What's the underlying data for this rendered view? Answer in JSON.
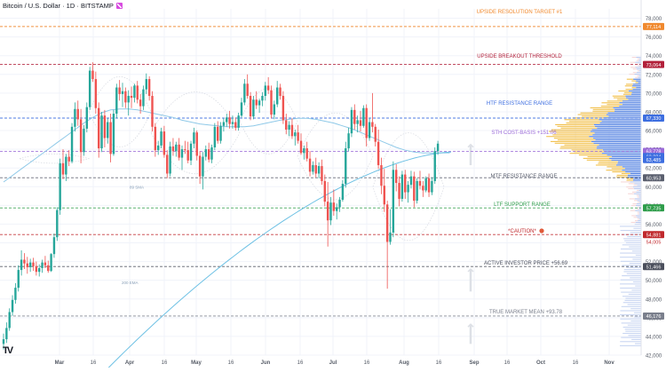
{
  "header": {
    "title": "Bitcoin / U.S. Dollar · 1D · BITSTAMP",
    "brand_icon": "bolt-icon",
    "brand_color": "#d84ce0"
  },
  "watermark": "TV",
  "chart_data": {
    "type": "candlestick",
    "symbol": "Bitcoin / U.S. Dollar",
    "interval": "1D",
    "exchange": "BITSTAMP",
    "ylim": [
      42000,
      79000
    ],
    "y_ticks": [
      "42,000",
      "44,000",
      "46,000",
      "48,000",
      "50,000",
      "52,000",
      "54,000",
      "56,000",
      "58,000",
      "60,000",
      "62,000",
      "64,000",
      "66,000",
      "68,000",
      "70,000",
      "72,000",
      "74,000",
      "76,000",
      "78,000"
    ],
    "x_ticks": [
      "Mar",
      "16",
      "Apr",
      "16",
      "May",
      "16",
      "Jun",
      "16",
      "Jul",
      "16",
      "Aug",
      "16",
      "Sep",
      "16",
      "Oct",
      "16",
      "Nov"
    ],
    "colors": {
      "up": "#26a69a",
      "down": "#ef5350",
      "grid": "#f0f3fa",
      "ma": "#8fc9e8"
    },
    "candles_ohlc": [
      [
        43200,
        44300,
        42600,
        43700
      ],
      [
        43700,
        45500,
        43300,
        44900
      ],
      [
        44900,
        47000,
        44600,
        46600
      ],
      [
        46600,
        48400,
        46200,
        47900
      ],
      [
        47900,
        49700,
        47500,
        49200
      ],
      [
        49200,
        51600,
        48800,
        51100
      ],
      [
        51100,
        53200,
        50500,
        52200
      ],
      [
        52200,
        52900,
        51200,
        51800
      ],
      [
        51800,
        52500,
        50700,
        51400
      ],
      [
        51400,
        52300,
        50900,
        51900
      ],
      [
        51900,
        52400,
        51000,
        51500
      ],
      [
        51500,
        52000,
        50500,
        50900
      ],
      [
        50900,
        51700,
        50400,
        51300
      ],
      [
        51300,
        52200,
        50800,
        51900
      ],
      [
        51900,
        52600,
        51300,
        51600
      ],
      [
        51600,
        52100,
        50800,
        51000
      ],
      [
        51000,
        52900,
        50900,
        52800
      ],
      [
        52800,
        55000,
        52400,
        54600
      ],
      [
        54600,
        57800,
        54200,
        57500
      ],
      [
        57500,
        63000,
        57000,
        62500
      ],
      [
        62500,
        64000,
        60800,
        61300
      ],
      [
        61300,
        63500,
        60600,
        63200
      ],
      [
        63200,
        63900,
        62200,
        62700
      ],
      [
        62700,
        66800,
        62500,
        66400
      ],
      [
        66400,
        69000,
        65900,
        68300
      ],
      [
        68300,
        69200,
        66500,
        67200
      ],
      [
        67200,
        68300,
        62500,
        63700
      ],
      [
        63700,
        66600,
        63300,
        66200
      ],
      [
        66200,
        69000,
        65800,
        68500
      ],
      [
        68500,
        72800,
        68200,
        72400
      ],
      [
        72400,
        73300,
        71200,
        71500
      ],
      [
        71500,
        72300,
        67800,
        68400
      ],
      [
        68400,
        69000,
        63100,
        64100
      ],
      [
        64100,
        68000,
        63700,
        67600
      ],
      [
        67600,
        68200,
        64200,
        65200
      ],
      [
        65200,
        67300,
        64600,
        66900
      ],
      [
        66900,
        67800,
        62600,
        63500
      ],
      [
        63500,
        68200,
        63300,
        67800
      ],
      [
        67800,
        71000,
        67300,
        70600
      ],
      [
        70600,
        71400,
        69200,
        69900
      ],
      [
        69900,
        71100,
        68500,
        70200
      ],
      [
        70200,
        70600,
        68400,
        69000
      ],
      [
        69000,
        70300,
        67600,
        69700
      ],
      [
        69700,
        70700,
        68400,
        69500
      ],
      [
        69500,
        71000,
        69000,
        70800
      ],
      [
        70800,
        71300,
        68900,
        69300
      ],
      [
        69300,
        69900,
        67800,
        68600
      ],
      [
        68600,
        70800,
        68200,
        70400
      ],
      [
        70400,
        72100,
        69900,
        71500
      ],
      [
        71500,
        71800,
        69200,
        69700
      ],
      [
        69700,
        70200,
        65900,
        66400
      ],
      [
        66400,
        66800,
        63200,
        63900
      ],
      [
        63900,
        64900,
        63400,
        64400
      ],
      [
        64400,
        66300,
        64100,
        65900
      ],
      [
        65900,
        66500,
        63100,
        63400
      ],
      [
        63400,
        63900,
        60900,
        61400
      ],
      [
        61400,
        64800,
        61100,
        64300
      ],
      [
        64300,
        65200,
        63300,
        63800
      ],
      [
        63800,
        64800,
        63200,
        64500
      ],
      [
        64500,
        65200,
        62800,
        63100
      ],
      [
        63100,
        64400,
        61800,
        64000
      ],
      [
        64000,
        64900,
        63500,
        63900
      ],
      [
        63900,
        64800,
        62500,
        62800
      ],
      [
        62800,
        64900,
        62300,
        64600
      ],
      [
        64600,
        66300,
        64100,
        65800
      ],
      [
        65800,
        66000,
        62800,
        63300
      ],
      [
        63300,
        63800,
        60300,
        61100
      ],
      [
        61100,
        63700,
        59700,
        63200
      ],
      [
        63200,
        64400,
        62800,
        64000
      ],
      [
        64000,
        64700,
        62600,
        62900
      ],
      [
        62900,
        64500,
        62500,
        64200
      ],
      [
        64200,
        66800,
        63900,
        66400
      ],
      [
        66400,
        67000,
        64600,
        64900
      ],
      [
        64900,
        66900,
        64600,
        66500
      ],
      [
        66500,
        67300,
        65900,
        66900
      ],
      [
        66900,
        67800,
        66400,
        67400
      ],
      [
        67400,
        68100,
        66200,
        66700
      ],
      [
        66700,
        67600,
        66200,
        66900
      ],
      [
        66900,
        67400,
        66000,
        66300
      ],
      [
        66300,
        67900,
        66000,
        67600
      ],
      [
        67600,
        69500,
        67400,
        69000
      ],
      [
        69000,
        71500,
        68700,
        71000
      ],
      [
        71000,
        72000,
        69400,
        69700
      ],
      [
        69700,
        70100,
        67100,
        67500
      ],
      [
        67500,
        69700,
        67200,
        69300
      ],
      [
        69300,
        70200,
        68300,
        68700
      ],
      [
        68700,
        69400,
        67900,
        69200
      ],
      [
        69200,
        70100,
        68600,
        69700
      ],
      [
        69700,
        71200,
        69200,
        70800
      ],
      [
        70800,
        71700,
        69900,
        70300
      ],
      [
        70300,
        70800,
        67300,
        67700
      ],
      [
        67700,
        69200,
        67200,
        68800
      ],
      [
        68800,
        71300,
        68500,
        70600
      ],
      [
        70600,
        71000,
        69300,
        69700
      ],
      [
        69700,
        70200,
        66700,
        67100
      ],
      [
        67100,
        67800,
        65600,
        66100
      ],
      [
        66100,
        67000,
        65400,
        66600
      ],
      [
        66600,
        67300,
        65100,
        65400
      ],
      [
        65400,
        66100,
        64400,
        65800
      ],
      [
        65800,
        66600,
        64600,
        64900
      ],
      [
        64900,
        65700,
        63400,
        63600
      ],
      [
        63600,
        64400,
        62900,
        64100
      ],
      [
        64100,
        64800,
        62700,
        63000
      ],
      [
        63000,
        63800,
        61100,
        61600
      ],
      [
        61600,
        62700,
        61300,
        62300
      ],
      [
        62300,
        63100,
        61000,
        61400
      ],
      [
        61400,
        62600,
        60900,
        62200
      ],
      [
        62200,
        62900,
        60200,
        60600
      ],
      [
        60600,
        61300,
        57900,
        58400
      ],
      [
        58400,
        60500,
        53600,
        56400
      ],
      [
        56400,
        58900,
        55900,
        58300
      ],
      [
        58300,
        59700,
        56900,
        57400
      ],
      [
        57400,
        58200,
        56500,
        57800
      ],
      [
        57800,
        58900,
        57300,
        58600
      ],
      [
        58600,
        60700,
        58400,
        60300
      ],
      [
        60300,
        64800,
        59900,
        64100
      ],
      [
        64100,
        66300,
        63800,
        65700
      ],
      [
        65700,
        68500,
        65300,
        68200
      ],
      [
        68200,
        68800,
        66100,
        66700
      ],
      [
        66700,
        67600,
        65800,
        67100
      ],
      [
        67100,
        68100,
        65900,
        66500
      ],
      [
        66500,
        68700,
        66300,
        68400
      ],
      [
        68400,
        68800,
        64300,
        65200
      ],
      [
        65200,
        67300,
        64900,
        66900
      ],
      [
        66900,
        70000,
        65800,
        66400
      ],
      [
        66400,
        66700,
        64300,
        64800
      ],
      [
        64800,
        66100,
        61900,
        62300
      ],
      [
        62300,
        63100,
        59200,
        60100
      ],
      [
        60100,
        61900,
        57300,
        58100
      ],
      [
        58100,
        58500,
        49100,
        54100
      ],
      [
        54100,
        57600,
        53800,
        55100
      ],
      [
        55100,
        62700,
        54600,
        61800
      ],
      [
        61800,
        62400,
        59500,
        60400
      ],
      [
        60400,
        61100,
        57900,
        58700
      ],
      [
        58700,
        61700,
        58400,
        61300
      ],
      [
        61300,
        61800,
        58700,
        59400
      ],
      [
        59400,
        60600,
        58300,
        60200
      ],
      [
        60200,
        61700,
        59800,
        61100
      ],
      [
        61100,
        61600,
        57800,
        58500
      ],
      [
        58500,
        60900,
        58200,
        60600
      ],
      [
        60600,
        61700,
        59700,
        60100
      ],
      [
        60100,
        60600,
        58900,
        59600
      ],
      [
        59600,
        61100,
        59400,
        60900
      ],
      [
        60900,
        61400,
        58900,
        59400
      ],
      [
        59400,
        61000,
        59100,
        60600
      ],
      [
        60600,
        64200,
        60300,
        63800
      ],
      [
        63800,
        64900,
        63400,
        64600
      ]
    ],
    "moving_average": [
      60500,
      61200,
      61900,
      62600,
      63300,
      64000,
      64700,
      65400,
      66100,
      66800,
      67400,
      67900,
      68200,
      68300,
      68300,
      68200,
      68000,
      67800,
      67600,
      67400,
      67100,
      66900,
      66700,
      66600,
      66500,
      66400,
      66400,
      66400,
      66500,
      66700,
      66900,
      67100,
      67200,
      67300,
      67300,
      67200,
      67000,
      66800,
      66500,
      66200,
      65800,
      65400,
      65000,
      64600,
      64200,
      63900,
      63700,
      63600,
      63600,
      63600,
      63600
    ],
    "ma_label": "89 SMA",
    "ema_label": "200 EMA",
    "levels": [
      {
        "label": "UPSIDE RESOLUTION TARGET #1",
        "price": 77114,
        "tag": "77,114",
        "color": "#f0892e"
      },
      {
        "label": "UPSIDE BREAKOUT THRESHOLD",
        "price": 73064,
        "tag": "73,064",
        "color": "#b2203a"
      },
      {
        "label": "HTF RESISTANCE RANGE",
        "price": 67330,
        "tag": "67,330",
        "color": "#3d6ee0"
      },
      {
        "label": "STH COST-BASIS +151.06",
        "price": 63778,
        "tag": "63,778",
        "color": "#9b6bd8"
      },
      {
        "label": "MTF RESISTANCE RANGE",
        "price": 60953,
        "tag": "60,953",
        "color": "#5a5f6e"
      },
      {
        "label": "LTF SUPPORT RANGE",
        "price": 57735,
        "tag": "57,735",
        "color": "#2e9d4a"
      },
      {
        "label": "*CAUTION*",
        "price": 54881,
        "tag": "54,881",
        "color": "#c0282c"
      },
      {
        "label": "ACTIVE INVESTOR PRICE +56.69",
        "price": 51466,
        "tag": "51,466",
        "color": "#4b4f5c"
      },
      {
        "label": "TRUE MARKET MEAN +93.78",
        "price": 46176,
        "tag": "46,176",
        "color": "#7a7f8c"
      }
    ],
    "price_tags": [
      {
        "text": "63,224",
        "price": 63224,
        "color": "#3d6ee0"
      },
      {
        "text": "63,485",
        "price": 62900,
        "color": "#3d6ee0"
      },
      {
        "text": "54,005",
        "price": 54100,
        "color": "#ffffff"
      }
    ],
    "grid": true
  }
}
